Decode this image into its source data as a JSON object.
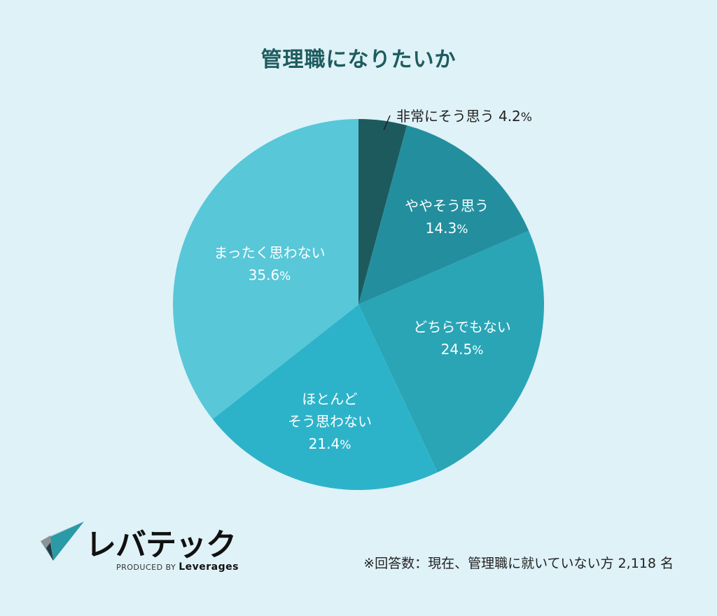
{
  "chart_data": {
    "type": "pie",
    "title": "管理職になりたいか",
    "unit": "%",
    "slices": [
      {
        "label": "非常にそう思う",
        "value": 4.2,
        "color": "#1d5a5e"
      },
      {
        "label": "ややそう思う",
        "value": 14.3,
        "color": "#238f9e"
      },
      {
        "label": "どちらでもない",
        "value": 24.5,
        "color": "#2aa5b6"
      },
      {
        "label": "ほとんどそう思わない",
        "label_lines": [
          "ほとんど",
          "そう思わない"
        ],
        "value": 21.4,
        "color": "#2db3c9"
      },
      {
        "label": "まったく思わない",
        "value": 35.6,
        "color": "#58c7d8"
      }
    ],
    "value_labels": [
      "4.2",
      "14.3",
      "24.5",
      "21.4",
      "35.6"
    ],
    "start": "top",
    "direction": "clockwise"
  },
  "footnote": "※回答数：現在、管理職に就いていない方 2,118 名",
  "logo": {
    "name": "レバテック",
    "sub_prefix": "PRODUCED BY",
    "sub_brand": "Leverages"
  },
  "colors": {
    "background": "#dff2f8",
    "title": "#1e5c5e"
  }
}
